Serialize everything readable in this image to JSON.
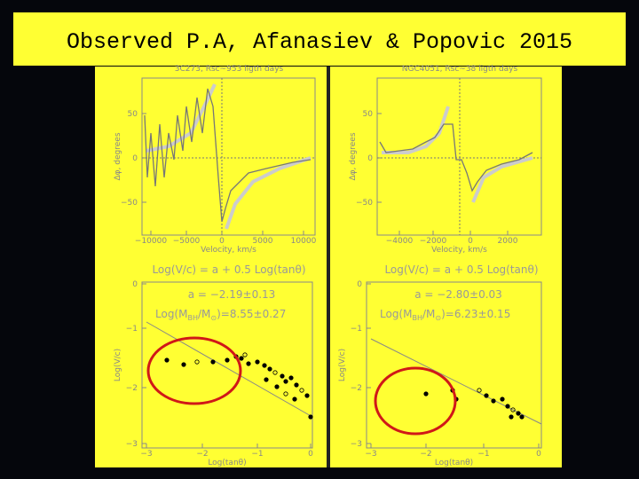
{
  "title": "Observed P.A,  Afanasiev & Popovic 2015",
  "panels": [
    {
      "title": "3C273, Rsc~953 ligth days",
      "ylabel": "Δφ, degrees",
      "xlabel": "Velocity, km/s",
      "yticks": [
        "50",
        "0",
        "−50"
      ],
      "xticks": [
        "−10000",
        "−5000",
        "0",
        "5000",
        "10000"
      ]
    },
    {
      "title": "NGC4051, Rsc~38 ligth days",
      "ylabel": "Δφ, degrees",
      "xlabel": "Velocity, km/s",
      "yticks": [
        "50",
        "0",
        "−50"
      ],
      "xticks": [
        "−4000",
        "−2000",
        "0",
        "2000"
      ]
    },
    {
      "title": "Log(V/c) = a + 0.5 Log(tanθ)",
      "ylabel": "Log(V/c)",
      "xlabel": "Log(tanθ)",
      "yticks": [
        "0",
        "−1",
        "−2",
        "−3"
      ],
      "xticks": [
        "−3",
        "−2",
        "−1",
        "0"
      ],
      "fit": "a = −2.19±0.13",
      "mass": {
        "pre": "Log(M",
        "sub1": "BH",
        "mid": "/M",
        "sub2": "⊙",
        "post": ")=8.55±0.27"
      }
    },
    {
      "title": "Log(V/c) = a + 0.5 Log(tanθ)",
      "ylabel": "Log(V/c)",
      "xlabel": "Log(tanθ)",
      "yticks": [
        "0",
        "−1",
        "−2",
        "−3"
      ],
      "xticks": [
        "−3",
        "−2",
        "−1",
        "0"
      ],
      "fit": "a = −2.80±0.03",
      "mass": {
        "pre": "Log(M",
        "sub1": "BH",
        "mid": "/M",
        "sub2": "⊙",
        "post": ")=6.23±0.15"
      }
    }
  ]
}
